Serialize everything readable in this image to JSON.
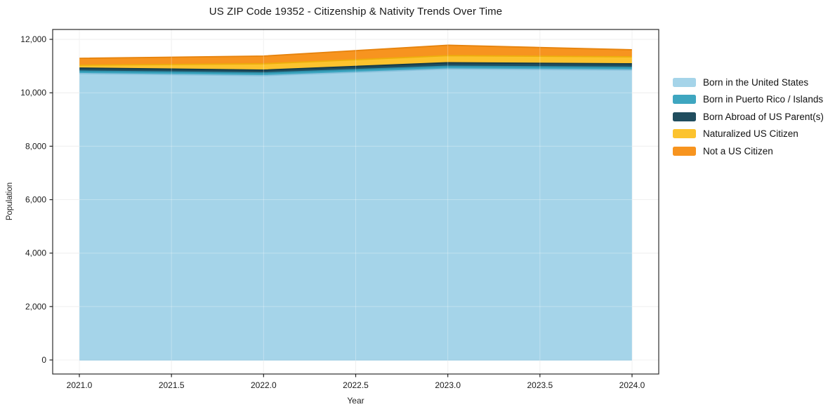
{
  "chart_data": {
    "type": "area",
    "stacked": true,
    "title": "US ZIP Code 19352 - Citizenship & Nativity Trends Over Time",
    "xlabel": "Year",
    "ylabel": "Population",
    "x": [
      2021,
      2022,
      2023,
      2024
    ],
    "series": [
      {
        "name": "Born in the United States",
        "color": "#a5d4e9",
        "line_color": "#8ac2dd",
        "values": [
          10720,
          10640,
          10890,
          10850
        ]
      },
      {
        "name": "Born in Puerto Rico / Islands",
        "color": "#3ea6c0",
        "line_color": "#2d8fa9",
        "values": [
          95,
          105,
          105,
          105
        ]
      },
      {
        "name": "Born Abroad of US Parent(s)",
        "color": "#204d5e",
        "line_color": "#143a48",
        "values": [
          110,
          105,
          130,
          130
        ]
      },
      {
        "name": "Naturalized US Citizen",
        "color": "#fcc32e",
        "line_color": "#edae0c",
        "values": [
          105,
          235,
          265,
          260
        ]
      },
      {
        "name": "Not a US Citizen",
        "color": "#f7941f",
        "line_color": "#e6830d",
        "values": [
          260,
          290,
          390,
          265
        ]
      }
    ],
    "x_ticks": [
      2021.0,
      2021.5,
      2022.0,
      2022.5,
      2023.0,
      2023.5,
      2024.0
    ],
    "x_tick_labels": [
      "2021.0",
      "2021.5",
      "2022.0",
      "2022.5",
      "2023.0",
      "2023.5",
      "2024.0"
    ],
    "y_ticks": [
      0,
      2000,
      4000,
      6000,
      8000,
      10000,
      12000
    ],
    "y_tick_labels": [
      "0",
      "2,000",
      "4,000",
      "6,000",
      "8,000",
      "10,000",
      "12,000"
    ],
    "xlim": [
      2020.85,
      2024.15
    ],
    "ylim": [
      -525,
      12370
    ],
    "grid": true,
    "legend_position": "right-outside"
  }
}
